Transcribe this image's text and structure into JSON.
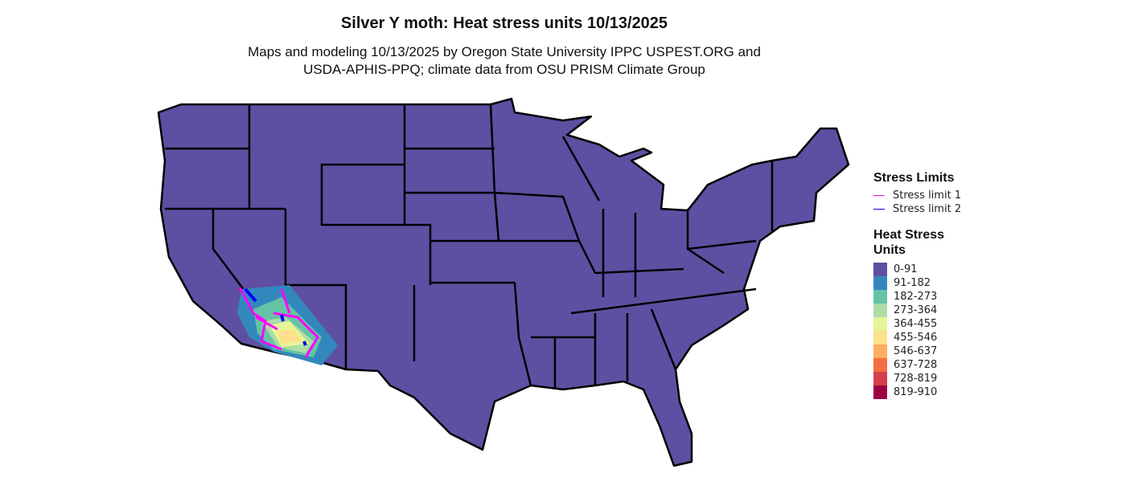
{
  "title": "Silver Y moth: Heat stress units 10/13/2025",
  "subtitle_line1": "Maps and modeling 10/13/2025 by Oregon State University IPPC USPEST.ORG and",
  "subtitle_line2": "USDA-APHIS-PPQ; climate data from OSU PRISM Climate Group",
  "legend_limits": {
    "title": "Stress Limits",
    "items": [
      {
        "label": "Stress limit 1",
        "color": "#ff00ff"
      },
      {
        "label": "Stress limit 2",
        "color": "#0000ff"
      }
    ]
  },
  "legend_units": {
    "title_line1": "Heat Stress",
    "title_line2": "Units",
    "items": [
      {
        "label": "0-91",
        "color": "#5e4fa2"
      },
      {
        "label": "91-182",
        "color": "#3288bd"
      },
      {
        "label": "182-273",
        "color": "#66c2a5"
      },
      {
        "label": "273-364",
        "color": "#abdda4"
      },
      {
        "label": "364-455",
        "color": "#e6f598"
      },
      {
        "label": "455-546",
        "color": "#fee08b"
      },
      {
        "label": "546-637",
        "color": "#fdae61"
      },
      {
        "label": "637-728",
        "color": "#f46d43"
      },
      {
        "label": "728-819",
        "color": "#d53e4f"
      },
      {
        "label": "819-910",
        "color": "#9e0142"
      }
    ]
  }
}
